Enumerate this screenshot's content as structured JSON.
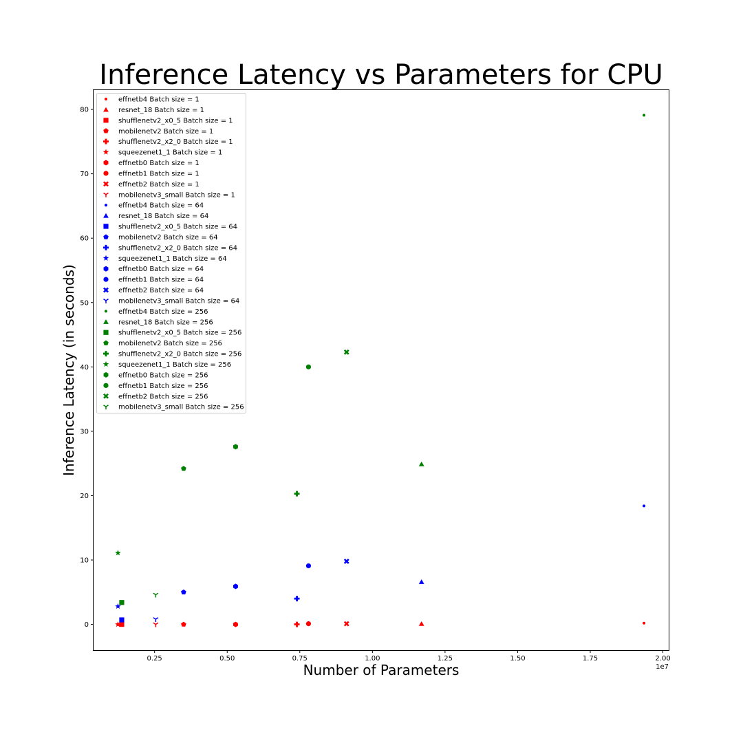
{
  "chart_data": {
    "type": "scatter",
    "title": "Inference Latency vs Parameters for CPU",
    "xlabel": "Number of Parameters",
    "ylabel": "Inference Latency (in seconds)",
    "x_offset_label": "1e7",
    "xlim": [
      0.04,
      2.02
    ],
    "ylim": [
      -4,
      83
    ],
    "xticks": [
      0.25,
      0.5,
      0.75,
      1.0,
      1.25,
      1.5,
      1.75,
      2.0
    ],
    "xtick_labels": [
      "0.25",
      "0.50",
      "0.75",
      "1.00",
      "1.25",
      "1.50",
      "1.75",
      "2.00"
    ],
    "yticks": [
      0,
      10,
      20,
      30,
      40,
      50,
      60,
      70,
      80
    ],
    "ytick_labels": [
      "0",
      "10",
      "20",
      "30",
      "40",
      "50",
      "60",
      "70",
      "80"
    ],
    "grid": false,
    "legend_position": "upper-left",
    "colors": {
      "Batch size = 1": "#ff0000",
      "Batch size = 64": "#0000ff",
      "Batch size = 256": "#008000"
    },
    "series": [
      {
        "name": "effnetb4 Batch size = 1",
        "model": "effnetb4",
        "batch": 1,
        "color": "#ff0000",
        "marker": "point",
        "x": 1.935,
        "y": 0.2
      },
      {
        "name": "resnet_18 Batch size = 1",
        "model": "resnet_18",
        "batch": 1,
        "color": "#ff0000",
        "marker": "triangle",
        "x": 1.169,
        "y": 0.1
      },
      {
        "name": "shufflenetv2_x0_5 Batch size = 1",
        "model": "shufflenetv2_x0_5",
        "batch": 1,
        "color": "#ff0000",
        "marker": "square",
        "x": 0.137,
        "y": 0.0
      },
      {
        "name": "mobilenetv2 Batch size = 1",
        "model": "mobilenetv2",
        "batch": 1,
        "color": "#ff0000",
        "marker": "pentagon",
        "x": 0.35,
        "y": 0.0
      },
      {
        "name": "shufflenetv2_x2_0 Batch size = 1",
        "model": "shufflenetv2_x2_0",
        "batch": 1,
        "color": "#ff0000",
        "marker": "plus",
        "x": 0.74,
        "y": 0.0
      },
      {
        "name": "squeezenet1_1 Batch size = 1",
        "model": "squeezenet1_1",
        "batch": 1,
        "color": "#ff0000",
        "marker": "star",
        "x": 0.124,
        "y": 0.0
      },
      {
        "name": "effnetb0 Batch size = 1",
        "model": "effnetb0",
        "batch": 1,
        "color": "#ff0000",
        "marker": "hexagon",
        "x": 0.529,
        "y": 0.0
      },
      {
        "name": "effnetb1 Batch size = 1",
        "model": "effnetb1",
        "batch": 1,
        "color": "#ff0000",
        "marker": "circle",
        "x": 0.78,
        "y": 0.1
      },
      {
        "name": "effnetb2 Batch size = 1",
        "model": "effnetb2",
        "batch": 1,
        "color": "#ff0000",
        "marker": "x",
        "x": 0.911,
        "y": 0.1
      },
      {
        "name": "mobilenetv3_small Batch size = 1",
        "model": "mobilenetv3_small",
        "batch": 1,
        "color": "#ff0000",
        "marker": "tri_down",
        "x": 0.254,
        "y": 0.0
      },
      {
        "name": "effnetb4 Batch size = 64",
        "model": "effnetb4",
        "batch": 64,
        "color": "#0000ff",
        "marker": "point",
        "x": 1.935,
        "y": 18.4
      },
      {
        "name": "resnet_18 Batch size = 64",
        "model": "resnet_18",
        "batch": 64,
        "color": "#0000ff",
        "marker": "triangle",
        "x": 1.169,
        "y": 6.6
      },
      {
        "name": "shufflenetv2_x0_5 Batch size = 64",
        "model": "shufflenetv2_x0_5",
        "batch": 64,
        "color": "#0000ff",
        "marker": "square",
        "x": 0.137,
        "y": 0.7
      },
      {
        "name": "mobilenetv2 Batch size = 64",
        "model": "mobilenetv2",
        "batch": 64,
        "color": "#0000ff",
        "marker": "pentagon",
        "x": 0.35,
        "y": 5.0
      },
      {
        "name": "shufflenetv2_x2_0 Batch size = 64",
        "model": "shufflenetv2_x2_0",
        "batch": 64,
        "color": "#0000ff",
        "marker": "plus",
        "x": 0.74,
        "y": 4.0
      },
      {
        "name": "squeezenet1_1 Batch size = 64",
        "model": "squeezenet1_1",
        "batch": 64,
        "color": "#0000ff",
        "marker": "star",
        "x": 0.124,
        "y": 2.8
      },
      {
        "name": "effnetb0 Batch size = 64",
        "model": "effnetb0",
        "batch": 64,
        "color": "#0000ff",
        "marker": "hexagon",
        "x": 0.529,
        "y": 5.9
      },
      {
        "name": "effnetb1 Batch size = 64",
        "model": "effnetb1",
        "batch": 64,
        "color": "#0000ff",
        "marker": "circle",
        "x": 0.78,
        "y": 9.1
      },
      {
        "name": "effnetb2 Batch size = 64",
        "model": "effnetb2",
        "batch": 64,
        "color": "#0000ff",
        "marker": "x",
        "x": 0.911,
        "y": 9.8
      },
      {
        "name": "mobilenetv3_small Batch size = 64",
        "model": "mobilenetv3_small",
        "batch": 64,
        "color": "#0000ff",
        "marker": "tri_down",
        "x": 0.254,
        "y": 0.8
      },
      {
        "name": "effnetb4 Batch size = 256",
        "model": "effnetb4",
        "batch": 256,
        "color": "#008000",
        "marker": "point",
        "x": 1.935,
        "y": 79.1
      },
      {
        "name": "resnet_18 Batch size = 256",
        "model": "resnet_18",
        "batch": 256,
        "color": "#008000",
        "marker": "triangle",
        "x": 1.169,
        "y": 24.9
      },
      {
        "name": "shufflenetv2_x0_5 Batch size = 256",
        "model": "shufflenetv2_x0_5",
        "batch": 256,
        "color": "#008000",
        "marker": "square",
        "x": 0.137,
        "y": 3.4
      },
      {
        "name": "mobilenetv2 Batch size = 256",
        "model": "mobilenetv2",
        "batch": 256,
        "color": "#008000",
        "marker": "pentagon",
        "x": 0.35,
        "y": 24.2
      },
      {
        "name": "shufflenetv2_x2_0 Batch size = 256",
        "model": "shufflenetv2_x2_0",
        "batch": 256,
        "color": "#008000",
        "marker": "plus",
        "x": 0.74,
        "y": 20.3
      },
      {
        "name": "squeezenet1_1 Batch size = 256",
        "model": "squeezenet1_1",
        "batch": 256,
        "color": "#008000",
        "marker": "star",
        "x": 0.124,
        "y": 11.1
      },
      {
        "name": "effnetb0 Batch size = 256",
        "model": "effnetb0",
        "batch": 256,
        "color": "#008000",
        "marker": "hexagon",
        "x": 0.529,
        "y": 27.6
      },
      {
        "name": "effnetb1 Batch size = 256",
        "model": "effnetb1",
        "batch": 256,
        "color": "#008000",
        "marker": "circle",
        "x": 0.78,
        "y": 40.0
      },
      {
        "name": "effnetb2 Batch size = 256",
        "model": "effnetb2",
        "batch": 256,
        "color": "#008000",
        "marker": "x",
        "x": 0.911,
        "y": 42.3
      },
      {
        "name": "mobilenetv3_small Batch size = 256",
        "model": "mobilenetv3_small",
        "batch": 256,
        "color": "#008000",
        "marker": "tri_down",
        "x": 0.254,
        "y": 4.6
      }
    ]
  }
}
